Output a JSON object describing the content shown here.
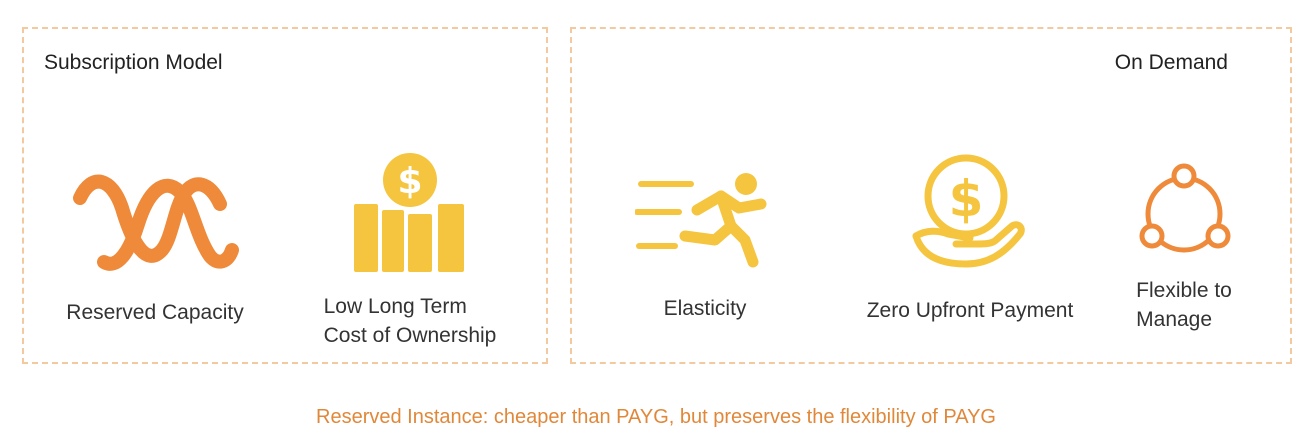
{
  "subscription": {
    "title": "Subscription Model",
    "items": [
      {
        "label": "Reserved Capacity",
        "icon": "wave-capacity-icon"
      },
      {
        "label_line1": "Low Long Term",
        "label_line2": "Cost of Ownership",
        "icon": "dollar-bars-icon"
      }
    ]
  },
  "on_demand": {
    "title": "On Demand",
    "items": [
      {
        "label": "Elasticity",
        "icon": "running-person-icon"
      },
      {
        "label": "Zero Upfront Payment",
        "icon": "dollar-hand-icon"
      },
      {
        "label_line1": "Flexible to",
        "label_line2": "Manage",
        "icon": "nodes-cycle-icon"
      }
    ]
  },
  "caption": "Reserved Instance: cheaper than PAYG, but preserves the flexibility of PAYG",
  "colors": {
    "orange": "#ee8a3a",
    "gold": "#f5c53f",
    "caption": "#e0883a",
    "border": "#f3c9a0"
  }
}
